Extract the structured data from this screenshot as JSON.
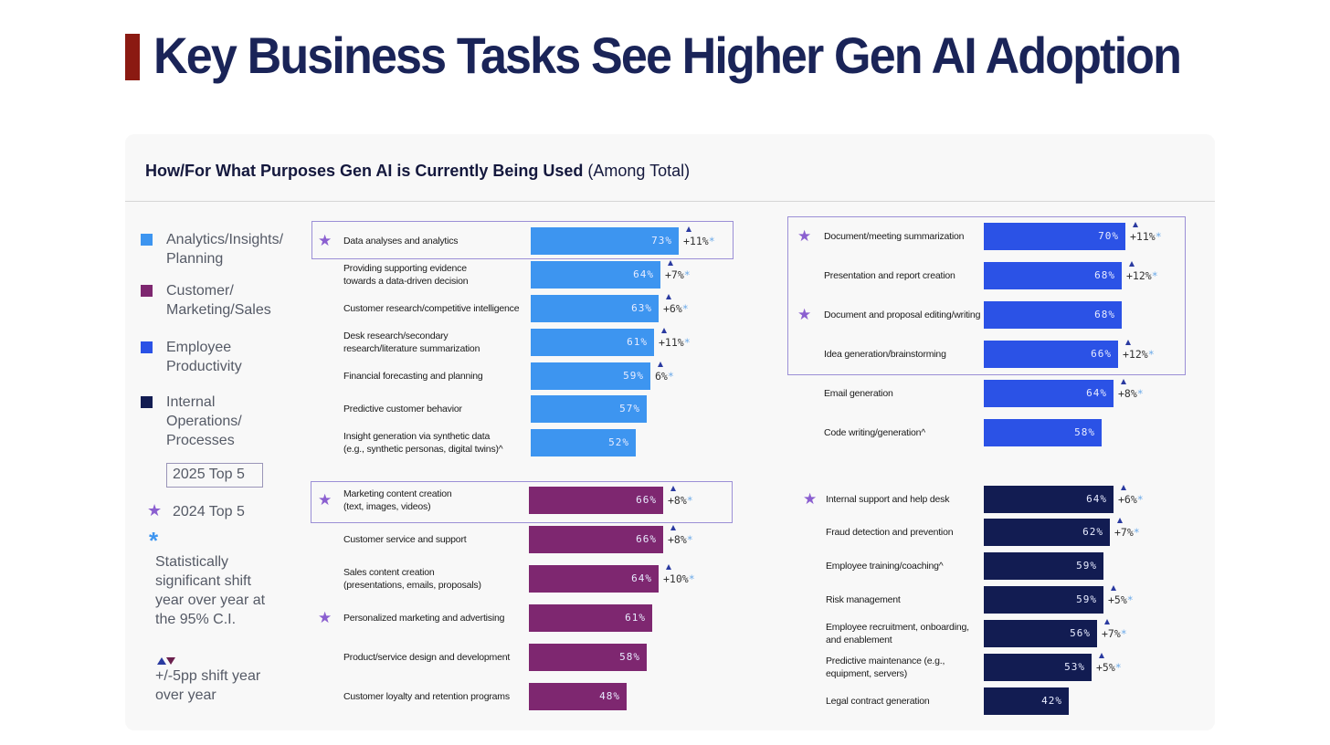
{
  "page": {
    "title": "Key Business Tasks See Higher Gen AI Adoption"
  },
  "panel": {
    "title_bold": "How/For What Purposes Gen AI is Currently Being Used",
    "title_regular": " (Among Total)"
  },
  "legend": {
    "categories": [
      {
        "label": "Analytics/Insights/ Planning",
        "color": "#3d95f0"
      },
      {
        "label": "Customer/ Marketing/Sales",
        "color": "#7e2770"
      },
      {
        "label": "Employee Productivity",
        "color": "#2b52e6"
      },
      {
        "label": "Internal Operations/ Processes",
        "color": "#121c52"
      }
    ],
    "top5_2025": "2025 Top 5",
    "top5_2024": "2024 Top 5",
    "significance_note": "Statistically significant shift year over year at the 95% C.I.",
    "shift_note": "+/-5pp shift year over year",
    "star_icon": "star-icon",
    "asterisk_icon": "asterisk-icon",
    "triangle_icons": [
      "triangle-up-icon",
      "triangle-down-icon"
    ]
  },
  "chart_data": {
    "type": "bar",
    "orientation": "horizontal",
    "title": "How/For What Purposes Gen AI is Currently Being Used (Among Total)",
    "unit": "%",
    "xlim": [
      0,
      100
    ],
    "groups": [
      {
        "name": "Analytics/Insights/Planning",
        "color": "#3d95f0",
        "items": [
          {
            "label": "Data analyses and analytics",
            "value": 73,
            "value_label": "73%",
            "delta": "+11%",
            "sig": true,
            "up": true,
            "top5_2024": true,
            "top5_2025": true
          },
          {
            "label": "Providing supporting evidence\ntowards a data-driven decision",
            "value": 64,
            "value_label": "64%",
            "delta": "+7%",
            "sig": true,
            "up": true,
            "top5_2024": false,
            "top5_2025": false
          },
          {
            "label": "Customer research/competitive intelligence",
            "value": 63,
            "value_label": "63%",
            "delta": "+6%",
            "sig": true,
            "up": true,
            "top5_2024": false,
            "top5_2025": false
          },
          {
            "label": "Desk research/secondary\nresearch/literature summarization",
            "value": 61,
            "value_label": "61%",
            "delta": "+11%",
            "sig": true,
            "up": true,
            "top5_2024": false,
            "top5_2025": false
          },
          {
            "label": "Financial forecasting and planning",
            "value": 59,
            "value_label": "59%",
            "delta": "6%",
            "sig": true,
            "up": true,
            "top5_2024": false,
            "top5_2025": false
          },
          {
            "label": "Predictive customer behavior",
            "value": 57,
            "value_label": "57%",
            "delta": "",
            "sig": false,
            "up": false,
            "top5_2024": false,
            "top5_2025": false
          },
          {
            "label": "Insight generation via synthetic data\n(e.g., synthetic personas, digital twins)^",
            "value": 52,
            "value_label": "52%",
            "delta": "",
            "sig": false,
            "up": false,
            "top5_2024": false,
            "top5_2025": false
          }
        ]
      },
      {
        "name": "Customer/Marketing/Sales",
        "color": "#7e2770",
        "items": [
          {
            "label": "Marketing content creation\n(text, images, videos)",
            "value": 66,
            "value_label": "66%",
            "delta": "+8%",
            "sig": true,
            "up": true,
            "top5_2024": true,
            "top5_2025": true
          },
          {
            "label": "Customer service and support",
            "value": 66,
            "value_label": "66%",
            "delta": "+8%",
            "sig": true,
            "up": true,
            "top5_2024": false,
            "top5_2025": false
          },
          {
            "label": "Sales content creation\n(presentations, emails, proposals)",
            "value": 64,
            "value_label": "64%",
            "delta": "+10%",
            "sig": true,
            "up": true,
            "top5_2024": false,
            "top5_2025": false
          },
          {
            "label": "Personalized marketing and advertising",
            "value": 61,
            "value_label": "61%",
            "delta": "",
            "sig": false,
            "up": false,
            "top5_2024": true,
            "top5_2025": false
          },
          {
            "label": "Product/service design and development",
            "value": 58,
            "value_label": "58%",
            "delta": "",
            "sig": false,
            "up": false,
            "top5_2024": false,
            "top5_2025": false
          },
          {
            "label": "Customer loyalty and retention programs",
            "value": 48,
            "value_label": "48%",
            "delta": "",
            "sig": false,
            "up": false,
            "top5_2024": false,
            "top5_2025": false
          }
        ]
      },
      {
        "name": "Employee Productivity",
        "color": "#2b52e6",
        "items": [
          {
            "label": "Document/meeting summarization",
            "value": 70,
            "value_label": "70%",
            "delta": "+11%",
            "sig": true,
            "up": true,
            "top5_2024": true,
            "top5_2025": true
          },
          {
            "label": "Presentation and report creation",
            "value": 68,
            "value_label": "68%",
            "delta": "+12%",
            "sig": true,
            "up": true,
            "top5_2024": false,
            "top5_2025": true
          },
          {
            "label": "Document and proposal editing/writing",
            "value": 68,
            "value_label": "68%",
            "delta": "",
            "sig": false,
            "up": false,
            "top5_2024": true,
            "top5_2025": true
          },
          {
            "label": "Idea generation/brainstorming",
            "value": 66,
            "value_label": "66%",
            "delta": "+12%",
            "sig": true,
            "up": true,
            "top5_2024": false,
            "top5_2025": true
          },
          {
            "label": "Email generation",
            "value": 64,
            "value_label": "64%",
            "delta": "+8%",
            "sig": true,
            "up": true,
            "top5_2024": false,
            "top5_2025": false
          },
          {
            "label": "Code writing/generation^",
            "value": 58,
            "value_label": "58%",
            "delta": "",
            "sig": false,
            "up": false,
            "top5_2024": false,
            "top5_2025": false
          }
        ]
      },
      {
        "name": "Internal Operations/Processes",
        "color": "#121c52",
        "items": [
          {
            "label": "Internal support and help desk",
            "value": 64,
            "value_label": "64%",
            "delta": "+6%",
            "sig": true,
            "up": true,
            "top5_2024": true,
            "top5_2025": false
          },
          {
            "label": "Fraud detection and prevention",
            "value": 62,
            "value_label": "62%",
            "delta": "+7%",
            "sig": true,
            "up": true,
            "top5_2024": false,
            "top5_2025": false
          },
          {
            "label": "Employee training/coaching^",
            "value": 59,
            "value_label": "59%",
            "delta": "",
            "sig": false,
            "up": false,
            "top5_2024": false,
            "top5_2025": false
          },
          {
            "label": "Risk management",
            "value": 59,
            "value_label": "59%",
            "delta": "+5%",
            "sig": true,
            "up": true,
            "top5_2024": false,
            "top5_2025": false
          },
          {
            "label": "Employee recruitment, onboarding,\nand enablement",
            "value": 56,
            "value_label": "56%",
            "delta": "+7%",
            "sig": true,
            "up": true,
            "top5_2024": false,
            "top5_2025": false
          },
          {
            "label": "Predictive maintenance (e.g.,\nequipment, servers)",
            "value": 53,
            "value_label": "53%",
            "delta": "+5%",
            "sig": true,
            "up": true,
            "top5_2024": false,
            "top5_2025": false
          },
          {
            "label": "Legal contract generation",
            "value": 42,
            "value_label": "42%",
            "delta": "",
            "sig": false,
            "up": false,
            "top5_2024": false,
            "top5_2025": false
          }
        ]
      }
    ]
  }
}
